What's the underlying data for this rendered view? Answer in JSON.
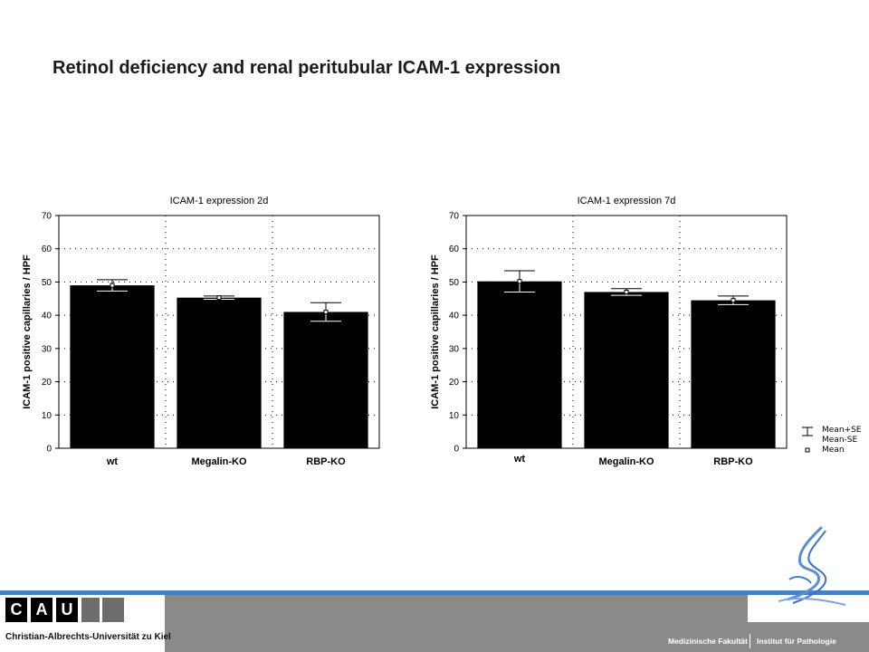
{
  "slide": {
    "title": "Retinol deficiency and renal peritubular ICAM-1 expression"
  },
  "chart_data": [
    {
      "type": "bar",
      "title": "ICAM-1 expression 2d",
      "ylabel": "ICAM-1 positive capillaries / HPF",
      "xlabel": "",
      "categories": [
        "wt",
        "Megalin-KO",
        "RBP-KO"
      ],
      "values": [
        49,
        45.3,
        41
      ],
      "errors": [
        1.7,
        0.5,
        2.8
      ],
      "ylim": [
        0,
        70
      ],
      "yticks": [
        0,
        10,
        20,
        30,
        40,
        50,
        60,
        70
      ],
      "grid": true
    },
    {
      "type": "bar",
      "title": "ICAM-1 expression 7d",
      "ylabel": "ICAM-1 positive capillaries / HPF",
      "xlabel": "",
      "categories": [
        "wt",
        "Megalin-KO",
        "RBP-KO"
      ],
      "values": [
        50.2,
        47,
        44.5
      ],
      "errors": [
        3.2,
        1,
        1.3
      ],
      "ylim": [
        0,
        70
      ],
      "yticks": [
        0,
        10,
        20,
        30,
        40,
        50,
        60,
        70
      ],
      "grid": true
    }
  ],
  "legend": {
    "items": [
      "Mean+SE",
      "Mean-SE",
      "Mean"
    ]
  },
  "footer": {
    "logo_letters": [
      "C",
      "A",
      "U"
    ],
    "university": "Christian-Albrechts-Universität zu Kiel",
    "faculty": "Medizinische Fakultät",
    "institute": "Institut für Pathologie"
  },
  "colors": {
    "bar": "#000000",
    "footer_blue": "#4a7fc0",
    "footer_grey": "#8a8a8a"
  }
}
